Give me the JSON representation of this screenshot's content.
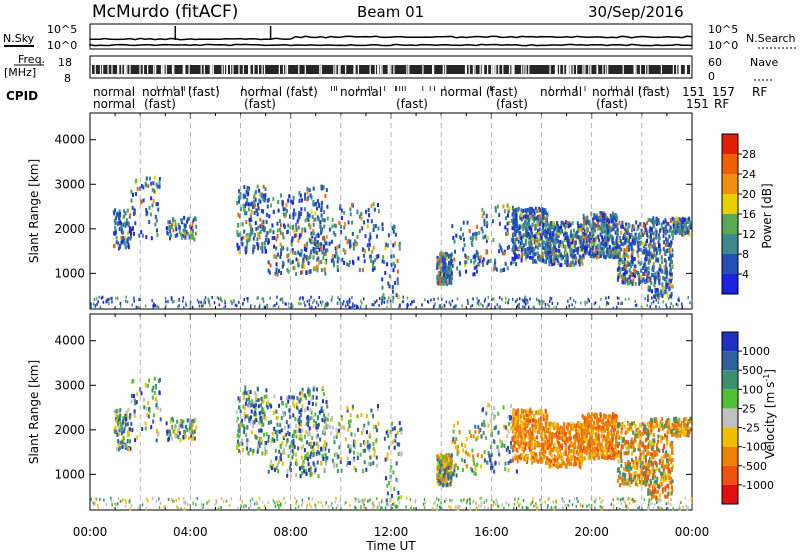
{
  "header": {
    "station": "McMurdo (fitACF)",
    "beam": "Beam 01",
    "date": "30/Sep/2016"
  },
  "top_panel": {
    "nsky_label": "N.Sky",
    "nsearch_label": "N.Search",
    "left_ticks": [
      "10^5",
      "10^0"
    ],
    "right_ticks": [
      "10^5",
      "10^0"
    ]
  },
  "freq_panel": {
    "label_line1": "Freq.",
    "label_line2": "[MHz]",
    "left_ticks": [
      "18",
      "8"
    ],
    "nave_label": "Nave",
    "right_ticks": [
      "60",
      "0"
    ]
  },
  "cpid_panel": {
    "label": "CPID",
    "rf_label": "RF",
    "row1": [
      "normal",
      "normal (fast)",
      "normal (fast)",
      "normal",
      "normal (fast)",
      "normal",
      "normal (fast)",
      "151",
      "157"
    ],
    "row2": [
      "normal",
      "(fast)",
      "(fast)",
      "(fast)",
      "(fast)",
      "(fast)",
      "151",
      "RF"
    ]
  },
  "time_axis": {
    "label": "Time UT",
    "ticks": [
      "00:00",
      "04:00",
      "08:00",
      "12:00",
      "16:00",
      "20:00",
      "00:00"
    ]
  },
  "chart_data": [
    {
      "type": "heatmap",
      "name": "power",
      "ylabel": "Slant Range [km]",
      "yticks": [
        1000,
        2000,
        3000,
        4000
      ],
      "ylim": [
        200,
        4600
      ],
      "xlim": [
        0,
        24
      ],
      "colorbar": {
        "label": "Power [dB]",
        "ticks": [
          "4",
          "8",
          "12",
          "16",
          "20",
          "24",
          "28"
        ],
        "colors": [
          "#1a22e0",
          "#2250b8",
          "#3c8a90",
          "#5aa850",
          "#e8d000",
          "#f09010",
          "#f06000",
          "#e02000"
        ]
      }
    },
    {
      "type": "heatmap",
      "name": "velocity",
      "ylabel": "Slant Range [km]",
      "yticks": [
        1000,
        2000,
        3000,
        4000
      ],
      "ylim": [
        200,
        4600
      ],
      "xlim": [
        0,
        24
      ],
      "colorbar": {
        "label": "Velocity [m s^-1]",
        "ticks": [
          "1000",
          "500",
          "100",
          "25",
          "-25",
          "-100",
          "-500",
          "-1000"
        ],
        "colors": [
          "#2030c0",
          "#3060a0",
          "#3c9070",
          "#50c030",
          "#c0c0c0",
          "#f0c000",
          "#f08000",
          "#f05010",
          "#e01010"
        ]
      }
    }
  ]
}
